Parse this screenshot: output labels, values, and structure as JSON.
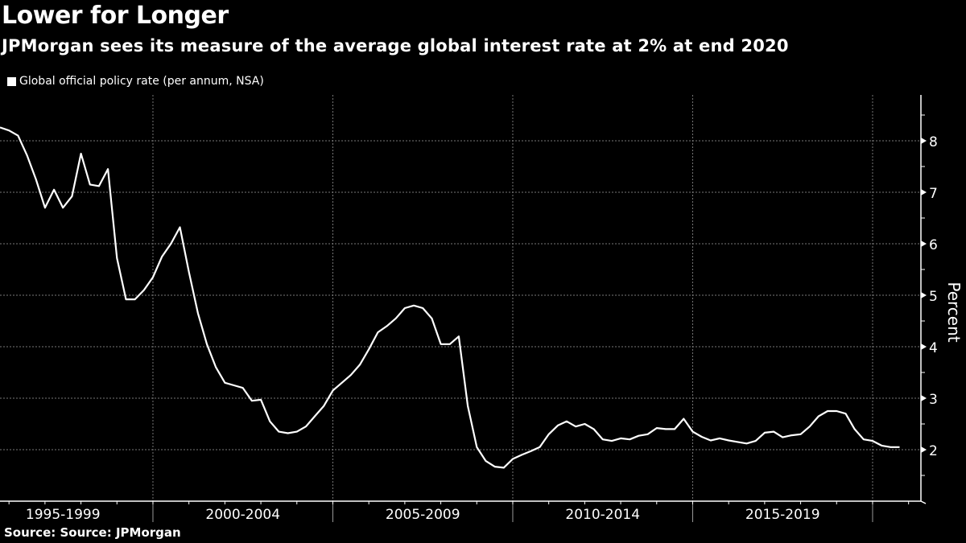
{
  "header": {
    "title": "Lower for Longer",
    "subtitle": "JPMorgan sees its measure of the average global interest rate at 2% at end 2020"
  },
  "footer": {
    "source": "Source: Source: JPMorgan"
  },
  "colors": {
    "background": "#000000",
    "line": "#ffffff",
    "grid": "#888888"
  },
  "chart_data": {
    "type": "line",
    "title": "Lower for Longer",
    "subtitle": "JPMorgan sees its measure of the average global interest rate at 2% at end 2020",
    "xlabel": "",
    "ylabel": "Percent",
    "ylim": [
      1.0,
      8.9
    ],
    "yticks": [
      2,
      3,
      4,
      5,
      6,
      7,
      8
    ],
    "xlim": [
      1995.75,
      2021.0
    ],
    "xtick_groups": [
      {
        "label": "1995-1999",
        "center": 1997.5
      },
      {
        "label": "2000-2004",
        "center": 2002.5
      },
      {
        "label": "2005-2009",
        "center": 2007.5
      },
      {
        "label": "2010-2014",
        "center": 2012.5
      },
      {
        "label": "2015-2019",
        "center": 2017.5
      }
    ],
    "grid": true,
    "legend_position": "top-left",
    "series": [
      {
        "name": "Global official policy rate (per annum, NSA)",
        "x": [
          1995.75,
          1996.0,
          1996.25,
          1996.5,
          1996.75,
          1997.0,
          1997.25,
          1997.5,
          1997.75,
          1998.0,
          1998.25,
          1998.5,
          1998.75,
          1999.0,
          1999.25,
          1999.5,
          1999.75,
          2000.0,
          2000.25,
          2000.5,
          2000.75,
          2001.0,
          2001.25,
          2001.5,
          2001.75,
          2002.0,
          2002.25,
          2002.5,
          2002.75,
          2003.0,
          2003.25,
          2003.5,
          2003.75,
          2004.0,
          2004.25,
          2004.5,
          2004.75,
          2005.0,
          2005.25,
          2005.5,
          2005.75,
          2006.0,
          2006.25,
          2006.5,
          2006.75,
          2007.0,
          2007.25,
          2007.5,
          2007.75,
          2008.0,
          2008.25,
          2008.5,
          2008.75,
          2009.0,
          2009.25,
          2009.5,
          2009.75,
          2010.0,
          2010.25,
          2010.5,
          2010.75,
          2011.0,
          2011.25,
          2011.5,
          2011.75,
          2012.0,
          2012.25,
          2012.5,
          2012.75,
          2013.0,
          2013.25,
          2013.5,
          2013.75,
          2014.0,
          2014.25,
          2014.5,
          2014.75,
          2015.0,
          2015.25,
          2015.5,
          2015.75,
          2016.0,
          2016.25,
          2016.5,
          2016.75,
          2017.0,
          2017.25,
          2017.5,
          2017.75,
          2018.0,
          2018.25,
          2018.5,
          2018.75,
          2019.0,
          2019.25,
          2019.5,
          2019.75,
          2020.0,
          2020.25,
          2020.5,
          2020.75
        ],
        "values": [
          8.26,
          8.2,
          8.1,
          7.72,
          7.25,
          6.7,
          7.05,
          6.7,
          6.92,
          7.75,
          7.15,
          7.12,
          7.45,
          5.72,
          4.92,
          4.92,
          5.1,
          5.35,
          5.75,
          6.0,
          6.32,
          5.45,
          4.65,
          4.05,
          3.6,
          3.3,
          3.25,
          3.2,
          2.95,
          2.97,
          2.55,
          2.35,
          2.32,
          2.35,
          2.45,
          2.65,
          2.85,
          3.15,
          3.3,
          3.45,
          3.65,
          3.95,
          4.28,
          4.4,
          4.55,
          4.75,
          4.8,
          4.75,
          4.55,
          4.05,
          4.05,
          4.2,
          2.85,
          2.05,
          1.78,
          1.67,
          1.65,
          1.82,
          1.9,
          1.97,
          2.05,
          2.3,
          2.47,
          2.55,
          2.45,
          2.5,
          2.4,
          2.2,
          2.17,
          2.22,
          2.2,
          2.27,
          2.3,
          2.42,
          2.4,
          2.4,
          2.6,
          2.35,
          2.25,
          2.18,
          2.22,
          2.18,
          2.15,
          2.12,
          2.17,
          2.33,
          2.35,
          2.24,
          2.28,
          2.3,
          2.45,
          2.65,
          2.75,
          2.75,
          2.7,
          2.4,
          2.2,
          2.17,
          2.08,
          2.05,
          2.05
        ]
      }
    ]
  }
}
